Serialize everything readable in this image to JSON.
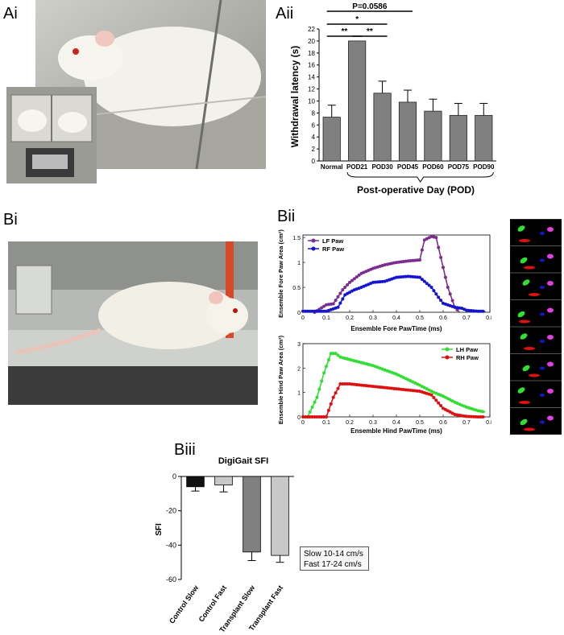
{
  "labels": {
    "ai": "Ai",
    "aii": "Aii",
    "bi": "Bi",
    "bii": "Bii",
    "biii": "Biii"
  },
  "colors": {
    "bar_gray": "#808080",
    "bar_light": "#c8c8c8",
    "bar_black": "#111111",
    "lf": "#7b2d8e",
    "rf": "#1515d0",
    "lh": "#33dd33",
    "rh": "#dd1111"
  },
  "chart_data": [
    {
      "id": "withdrawal",
      "type": "bar",
      "categories": [
        "Normal",
        "POD21",
        "POD30",
        "POD45",
        "POD60",
        "POD75",
        "POD90"
      ],
      "values": [
        7.3,
        20,
        11.3,
        9.8,
        8.3,
        7.6,
        7.6
      ],
      "errors": [
        2.0,
        0,
        2.0,
        2.0,
        2.0,
        2.0,
        2.0
      ],
      "ylabel": "Withdrawal latency (s)",
      "xlabel": "Post-operative Day (POD)",
      "ylim": [
        0,
        22
      ],
      "yticks": [
        0,
        2,
        4,
        6,
        8,
        10,
        12,
        14,
        16,
        18,
        20,
        22
      ],
      "annotations": [
        {
          "text": "P=0.0586",
          "from": "Normal",
          "to": "POD45"
        },
        {
          "text": "*",
          "from": "Normal",
          "to": "POD30"
        },
        {
          "text": "**",
          "from": "Normal",
          "to": "POD21"
        },
        {
          "text": "**",
          "from": "POD21",
          "to": "POD30"
        }
      ]
    },
    {
      "id": "fore",
      "type": "line",
      "ylabel": "Ensemble Fore Paw Area (cm²)",
      "xlabel": "Ensemble Fore PawTime (ms)",
      "xlim": [
        0,
        0.8
      ],
      "ylim": [
        0,
        1.55
      ],
      "xticks": [
        0,
        0.1,
        0.2,
        0.3,
        0.4,
        0.5,
        0.6,
        0.7,
        0.8
      ],
      "yticks": [
        0,
        0.5,
        1,
        1.5
      ],
      "legend": "top-left",
      "series": [
        {
          "name": "LF Paw",
          "color_key": "lf",
          "x": [
            0.05,
            0.1,
            0.13,
            0.17,
            0.2,
            0.25,
            0.3,
            0.35,
            0.4,
            0.45,
            0.5,
            0.52,
            0.55,
            0.57,
            0.6,
            0.62,
            0.65,
            0.67
          ],
          "y": [
            0.0,
            0.15,
            0.17,
            0.45,
            0.6,
            0.78,
            0.88,
            0.95,
            1.0,
            1.03,
            1.05,
            1.45,
            1.52,
            1.5,
            0.9,
            0.5,
            0.1,
            0.0
          ]
        },
        {
          "name": "RF Paw",
          "color_key": "rf",
          "x": [
            0.0,
            0.1,
            0.15,
            0.18,
            0.22,
            0.25,
            0.3,
            0.35,
            0.4,
            0.45,
            0.5,
            0.55,
            0.58,
            0.6,
            0.65,
            0.68,
            0.7,
            0.75,
            0.78
          ],
          "y": [
            0.02,
            0.02,
            0.1,
            0.35,
            0.45,
            0.5,
            0.6,
            0.62,
            0.7,
            0.72,
            0.7,
            0.5,
            0.3,
            0.18,
            0.1,
            0.08,
            0.04,
            0.02,
            0.02
          ]
        }
      ]
    },
    {
      "id": "hind",
      "type": "line",
      "ylabel": "Ensemble Hind Paw Area (cm²)",
      "xlabel": "Ensemble Hind PawTime (ms)",
      "xlim": [
        0,
        0.8
      ],
      "ylim": [
        0,
        3
      ],
      "xticks": [
        0,
        0.1,
        0.2,
        0.3,
        0.4,
        0.5,
        0.6,
        0.7,
        0.8
      ],
      "yticks": [
        0,
        1,
        2,
        3
      ],
      "legend": "top-right",
      "series": [
        {
          "name": "LH Paw",
          "color_key": "lh",
          "x": [
            0.02,
            0.06,
            0.09,
            0.12,
            0.14,
            0.16,
            0.2,
            0.3,
            0.4,
            0.5,
            0.56,
            0.6,
            0.65,
            0.7,
            0.75,
            0.78
          ],
          "y": [
            0.0,
            0.8,
            1.8,
            2.6,
            2.6,
            2.45,
            2.35,
            2.1,
            1.75,
            1.3,
            1.0,
            0.85,
            0.6,
            0.4,
            0.25,
            0.2
          ]
        },
        {
          "name": "RH Paw",
          "color_key": "rh",
          "x": [
            0.0,
            0.1,
            0.13,
            0.16,
            0.2,
            0.3,
            0.4,
            0.5,
            0.55,
            0.6,
            0.65,
            0.68,
            0.7,
            0.75,
            0.78
          ],
          "y": [
            0.0,
            0.0,
            0.8,
            1.35,
            1.35,
            1.25,
            1.15,
            1.05,
            0.9,
            0.35,
            0.1,
            0.05,
            0.02,
            0.0,
            0.0
          ]
        }
      ]
    },
    {
      "id": "sfi",
      "type": "bar",
      "title": "DigiGait SFI",
      "ylabel": "SFI",
      "categories": [
        "Control Slow",
        "Control Fast",
        "Transplant Slow",
        "Transplant Fast"
      ],
      "values": [
        -6,
        -5,
        -44,
        -46
      ],
      "errors": [
        2.5,
        4,
        5,
        4
      ],
      "color_keys": [
        "bar_black",
        "bar_light",
        "bar_gray",
        "bar_light"
      ],
      "ylim": [
        -60,
        0
      ],
      "yticks": [
        0,
        -20,
        -40,
        -60
      ]
    }
  ],
  "sfi_legend": {
    "line1": "Slow 10-14 cm/s",
    "line2": "Fast 17-24 cm/s"
  }
}
